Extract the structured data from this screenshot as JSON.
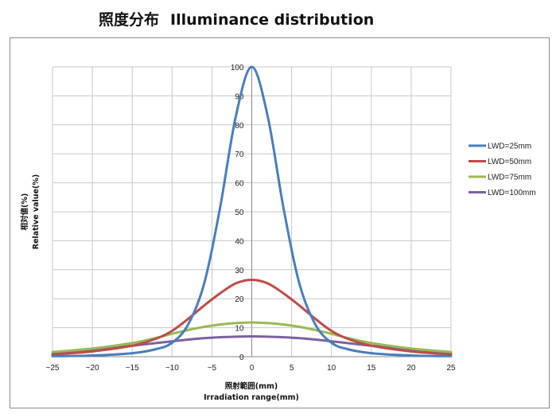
{
  "title": {
    "ja": "照度分布",
    "en": "Illuminance distribution"
  },
  "chart_data": {
    "type": "line",
    "xlabel_ja": "照射範囲(mm)",
    "xlabel_en": "Irradiation range(mm)",
    "ylabel_ja": "相対値(%)",
    "ylabel_en": "Relative value(%)",
    "xlim": [
      -25,
      25
    ],
    "ylim": [
      0,
      100
    ],
    "x_ticks": [
      -25,
      -20,
      -15,
      -10,
      -5,
      0,
      5,
      10,
      15,
      20,
      25
    ],
    "y_ticks": [
      0,
      10,
      20,
      30,
      40,
      50,
      60,
      70,
      80,
      90,
      100
    ],
    "grid": true,
    "legend_position": "right",
    "x": [
      -25,
      -20,
      -15,
      -12,
      -10,
      -8,
      -6,
      -4,
      -2,
      0,
      2,
      4,
      6,
      8,
      10,
      12,
      15,
      20,
      25
    ],
    "series": [
      {
        "name": "LWD=25mm",
        "color": "#4a7ebb",
        "values": [
          0.2,
          0.4,
          1.2,
          2.6,
          4.8,
          11,
          25,
          51,
          83,
          100,
          83,
          51,
          25,
          11,
          4.8,
          2.6,
          1.2,
          0.4,
          0.2
        ]
      },
      {
        "name": "LWD=50mm",
        "color": "#be4b48",
        "values": [
          0.8,
          1.8,
          3.8,
          6.2,
          8.9,
          13,
          17.6,
          21.8,
          25.3,
          26.5,
          25.3,
          21.8,
          17.6,
          13,
          8.9,
          6.2,
          3.8,
          1.8,
          0.8
        ]
      },
      {
        "name": "LWD=75mm",
        "color": "#98b954",
        "values": [
          1.6,
          2.8,
          4.7,
          6.5,
          7.9,
          9.2,
          10.3,
          11.1,
          11.6,
          11.8,
          11.6,
          11.1,
          10.3,
          9.2,
          7.9,
          6.5,
          4.7,
          2.8,
          1.6
        ]
      },
      {
        "name": "LWD=100mm",
        "color": "#7d60a0",
        "values": [
          1.4,
          2.5,
          3.8,
          4.7,
          5.3,
          5.9,
          6.4,
          6.7,
          6.9,
          7.0,
          6.9,
          6.7,
          6.4,
          5.9,
          5.3,
          4.7,
          3.8,
          2.5,
          1.4
        ]
      }
    ]
  }
}
